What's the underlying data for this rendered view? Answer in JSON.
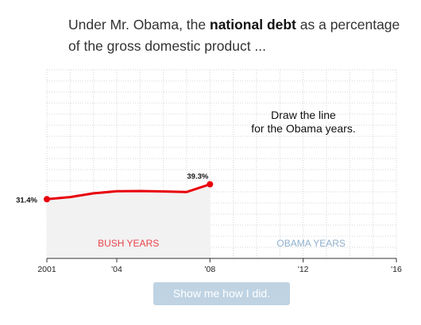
{
  "question": {
    "prefix": "Under Mr. Obama, the ",
    "bold": "national debt",
    "suffix": " as a percentage of the gross domestic product ..."
  },
  "instruction": {
    "line1": "Draw the line",
    "line2": "for the Obama years."
  },
  "regions": {
    "bush_label": "BUSH YEARS",
    "obama_label": "OBAMA YEARS"
  },
  "button_label": "Show me how I did.",
  "colors": {
    "line": "#e8000a",
    "bush_label": "#e8434b",
    "obama_label": "#8fb0cc",
    "bush_fill": "#f2f2f2",
    "button_bg": "#bfd3e3"
  },
  "chart_data": {
    "type": "line",
    "x_tick_labels": [
      "2001",
      "'04",
      "'08",
      "'12",
      "'16"
    ],
    "x_ticks": [
      2001,
      2004,
      2008,
      2012,
      2016
    ],
    "xlim": [
      2001,
      2016
    ],
    "ylim": [
      0,
      100
    ],
    "grid": true,
    "series": [
      {
        "x": [
          2001,
          2002,
          2003,
          2004,
          2005,
          2006,
          2007,
          2008
        ],
        "values": [
          31.4,
          32.5,
          34.5,
          35.6,
          35.7,
          35.5,
          35.2,
          39.3
        ]
      }
    ],
    "labels": {
      "start": "31.4%",
      "end": "39.3%"
    }
  }
}
